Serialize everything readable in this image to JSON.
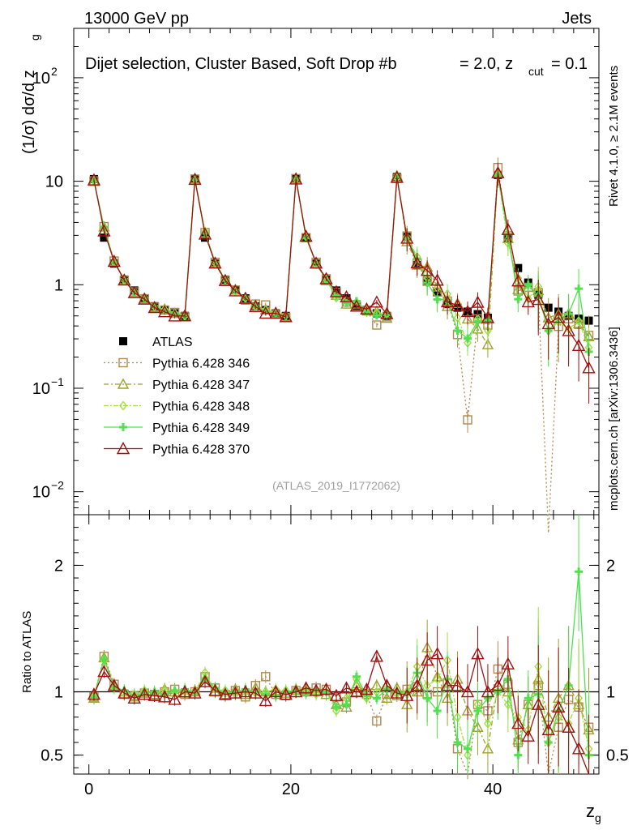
{
  "header": {
    "left": "13000 GeV pp",
    "right": "Jets"
  },
  "side_labels": {
    "rivet": "Rivet 4.1.0, ≥ 2.1M events",
    "mcplots": "mcplots.cern.ch [arXiv:1306.3436]"
  },
  "chart_data": {
    "type": "line",
    "title": "Dijet selection, Cluster Based, Soft Drop #b",
    "title_beta": "= 2.0, z",
    "title_cut": "cut",
    "title_zcut": "= 0.1",
    "watermark": "(ATLAS_2019_I1772062)",
    "ylabel_main": "(1/σ) dσ/d z",
    "ylabel_sub": "g",
    "ylabel_ratio": "Ratio to ATLAS",
    "xlabel": "z",
    "xlabel_sub": "g",
    "xlim": [
      -1.5,
      50.5
    ],
    "ylim_main": [
      0.006,
      300
    ],
    "ylim_ratio": [
      0.35,
      2.4
    ],
    "x_ticks": [
      0,
      20,
      40
    ],
    "y_ticks_main": [
      {
        "base": "10",
        "exp": "−2",
        "value": 0.01
      },
      {
        "base": "10",
        "exp": "−1",
        "value": 0.1
      },
      {
        "base": "1",
        "exp": "",
        "value": 1
      },
      {
        "base": "10",
        "exp": "",
        "value": 10
      },
      {
        "base": "10",
        "exp": "2",
        "value": 100
      }
    ],
    "y_ticks_ratio": [
      {
        "label": "0.5",
        "value": 0.5
      },
      {
        "label": "1",
        "value": 1
      },
      {
        "label": "2",
        "value": 2
      }
    ],
    "x": [
      0.5,
      1.5,
      2.5,
      3.5,
      4.5,
      5.5,
      6.5,
      7.5,
      8.5,
      9.5,
      10.5,
      11.5,
      12.5,
      13.5,
      14.5,
      15.5,
      16.5,
      17.5,
      18.5,
      19.5,
      20.5,
      21.5,
      22.5,
      23.5,
      24.5,
      25.5,
      26.5,
      27.5,
      28.5,
      29.5,
      30.5,
      31.5,
      32.5,
      33.5,
      34.5,
      35.5,
      36.5,
      37.5,
      38.5,
      39.5,
      40.5,
      41.5,
      42.5,
      43.5,
      44.5,
      45.5,
      46.5,
      47.5,
      48.5,
      49.5
    ],
    "series": [
      {
        "name": "ATLAS",
        "color": "#000000",
        "values": [
          10.5,
          2.85,
          1.6,
          1.12,
          0.88,
          0.74,
          0.62,
          0.57,
          0.53,
          0.5,
          10.5,
          2.85,
          1.6,
          1.12,
          0.88,
          0.74,
          0.62,
          0.57,
          0.53,
          0.5,
          10.5,
          2.85,
          1.6,
          1.12,
          0.88,
          0.74,
          0.62,
          0.57,
          0.53,
          0.5,
          11.0,
          2.9,
          1.55,
          1.1,
          0.85,
          0.65,
          0.6,
          0.55,
          0.52,
          0.48,
          11.5,
          2.8,
          1.45,
          1.05,
          0.8,
          0.6,
          0.55,
          0.5,
          0.47,
          0.45
        ]
      },
      {
        "name": "Pythia 6.428 346",
        "color": "#b08850",
        "ratio": [
          0.96,
          1.28,
          1.06,
          0.98,
          0.97,
          0.99,
          0.98,
          1.0,
          1.02,
          0.98,
          1.0,
          1.12,
          1.03,
          0.98,
          1.01,
          0.96,
          1.05,
          1.12,
          0.98,
          0.97,
          1.01,
          1.0,
          1.03,
          1.02,
          0.96,
          0.92,
          1.0,
          0.98,
          0.77,
          0.98,
          0.97,
          1.02,
          1.04,
          0.98,
          1.0,
          1.07,
          0.55,
          0.09,
          0.9,
          0.85,
          1.18,
          1.06,
          0.6,
          0.9,
          1.05,
          0.0,
          0.72,
          0.94,
          0.88,
          0.72
        ]
      },
      {
        "name": "Pythia 6.428 347",
        "color": "#a0a030",
        "ratio": [
          0.95,
          1.27,
          1.05,
          1.0,
          0.96,
          1.0,
          0.97,
          1.02,
          1.0,
          0.99,
          1.01,
          1.1,
          1.0,
          0.97,
          1.02,
          0.98,
          1.03,
          1.0,
          1.01,
          0.99,
          1.02,
          1.01,
          1.01,
          0.98,
          0.9,
          0.88,
          1.05,
          1.0,
          1.05,
          0.95,
          1.03,
          0.9,
          1.0,
          1.35,
          1.12,
          0.95,
          1.1,
          0.85,
          0.72,
          0.55,
          1.05,
          1.0,
          0.62,
          0.9,
          1.1,
          0.8,
          0.95,
          1.05,
          0.9,
          0.7
        ]
      },
      {
        "name": "Pythia 6.428 348",
        "color": "#a0e040",
        "ratio": [
          0.97,
          1.25,
          1.03,
          0.99,
          0.98,
          1.01,
          0.99,
          1.01,
          1.0,
          1.0,
          1.0,
          1.15,
          1.02,
          1.01,
          0.98,
          1.0,
          0.99,
          1.0,
          1.02,
          1.01,
          1.0,
          1.02,
          0.98,
          1.0,
          0.85,
          0.95,
          1.1,
          0.95,
          1.0,
          1.05,
          0.98,
          1.0,
          1.2,
          1.05,
          1.1,
          1.25,
          0.8,
          0.5,
          0.9,
          0.75,
          1.0,
          0.9,
          0.8,
          0.7,
          1.2,
          0.6,
          0.8,
          0.75,
          0.95,
          0.55
        ]
      },
      {
        "name": "Pythia 6.428 349",
        "color": "#50e050",
        "ratio": [
          0.96,
          1.26,
          1.04,
          1.01,
          0.97,
          0.99,
          1.0,
          0.98,
          1.01,
          1.02,
          0.99,
          1.1,
          1.03,
          0.99,
          1.0,
          1.02,
          1.0,
          0.98,
          0.97,
          1.0,
          1.01,
          0.99,
          1.02,
          1.0,
          0.88,
          0.9,
          1.12,
          0.97,
          0.95,
          1.02,
          1.0,
          0.98,
          1.15,
          0.95,
          0.85,
          1.1,
          0.6,
          0.55,
          0.85,
          0.95,
          1.0,
          1.1,
          0.5,
          0.95,
          0.98,
          0.6,
          0.85,
          1.05,
          1.95,
          0.5
        ]
      },
      {
        "name": "Pythia 6.428 370",
        "color": "#a01010",
        "ratio": [
          0.98,
          1.16,
          1.05,
          0.99,
          0.95,
          0.98,
          0.97,
          0.96,
          0.94,
          1.0,
          0.99,
          1.08,
          1.01,
          0.98,
          0.99,
          1.0,
          0.99,
          0.93,
          1.0,
          0.98,
          1.0,
          1.03,
          1.01,
          1.02,
          0.97,
          1.03,
          1.0,
          1.02,
          1.28,
          1.05,
          0.99,
          0.97,
          1.05,
          1.25,
          1.3,
          1.05,
          1.05,
          1.0,
          1.3,
          1.0,
          1.05,
          1.22,
          0.75,
          0.65,
          0.9,
          0.7,
          0.88,
          0.72,
          0.55,
          0.35
        ]
      }
    ]
  }
}
